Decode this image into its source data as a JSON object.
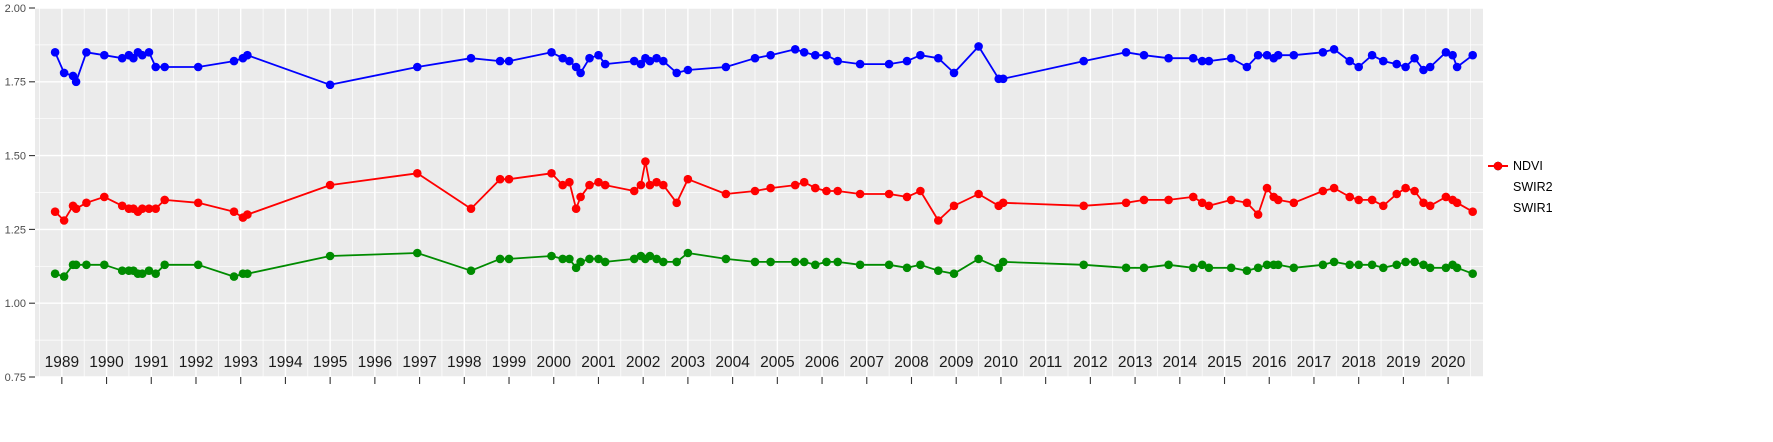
{
  "figure": {
    "background": "#FFFFFF",
    "panel_background": "#EBEBEB",
    "grid_color": "#FFFFFF",
    "y_axis_text_color": "#4D4D4D",
    "x_axis_text_color": "#1A1A1A",
    "tick_color": "#333333"
  },
  "chart_data": {
    "type": "line",
    "title": "",
    "xlabel": "",
    "ylabel": "",
    "grid": true,
    "legend_position": "right",
    "xlim": [
      1988.4,
      2020.78
    ],
    "ylim": [
      0.75,
      2.0
    ],
    "x_ticks": [
      1989,
      1990,
      1991,
      1992,
      1993,
      1994,
      1995,
      1996,
      1997,
      1998,
      1999,
      2000,
      2001,
      2002,
      2003,
      2004,
      2005,
      2006,
      2007,
      2008,
      2009,
      2010,
      2011,
      2012,
      2013,
      2014,
      2015,
      2016,
      2017,
      2018,
      2019,
      2020
    ],
    "x_tick_labels": [
      "1989",
      "1990",
      "1991",
      "1992",
      "1993",
      "1994",
      "1995",
      "1996",
      "1997",
      "1998",
      "1999",
      "2000",
      "2001",
      "2002",
      "2003",
      "2004",
      "2005",
      "2006",
      "2007",
      "2008",
      "2009",
      "2010",
      "2011",
      "2012",
      "2013",
      "2014",
      "2015",
      "2016",
      "2017",
      "2018",
      "2019",
      "2020"
    ],
    "y_ticks": [
      0.75,
      1.0,
      1.25,
      1.5,
      1.75,
      2.0
    ],
    "y_tick_labels": [
      "0.75",
      "1.00",
      "1.25",
      "1.50",
      "1.75",
      "2.00"
    ],
    "y_minor_ticks": [
      0.875,
      1.125,
      1.375,
      1.625,
      1.875
    ],
    "x": [
      1988.85,
      1989.05,
      1989.25,
      1989.32,
      1989.55,
      1989.95,
      1990.35,
      1990.5,
      1990.6,
      1990.7,
      1990.8,
      1990.95,
      1991.1,
      1991.3,
      1992.05,
      1992.85,
      1993.05,
      1993.15,
      1995.0,
      1996.95,
      1998.15,
      1998.8,
      1999.0,
      1999.95,
      2000.2,
      2000.35,
      2000.5,
      2000.6,
      2000.8,
      2001.0,
      2001.15,
      2001.8,
      2001.95,
      2002.05,
      2002.15,
      2002.3,
      2002.45,
      2002.75,
      2003.0,
      2003.85,
      2004.5,
      2004.85,
      2005.4,
      2005.6,
      2005.85,
      2006.1,
      2006.35,
      2006.85,
      2007.5,
      2007.9,
      2008.2,
      2008.6,
      2008.95,
      2009.5,
      2009.95,
      2010.05,
      2011.85,
      2012.8,
      2013.2,
      2013.75,
      2014.3,
      2014.5,
      2014.65,
      2015.15,
      2015.5,
      2015.75,
      2015.95,
      2016.1,
      2016.2,
      2016.55,
      2017.2,
      2017.45,
      2017.8,
      2018.0,
      2018.3,
      2018.55,
      2018.85,
      2019.05,
      2019.25,
      2019.45,
      2019.6,
      2019.95,
      2020.1,
      2020.2,
      2020.55
    ],
    "series": [
      {
        "name": "NDVI",
        "color": "#0000FF",
        "values": [
          1.85,
          1.78,
          1.77,
          1.75,
          1.85,
          1.84,
          1.83,
          1.84,
          1.83,
          1.85,
          1.84,
          1.85,
          1.8,
          1.8,
          1.8,
          1.82,
          1.83,
          1.84,
          1.74,
          1.8,
          1.83,
          1.82,
          1.82,
          1.85,
          1.83,
          1.82,
          1.8,
          1.78,
          1.83,
          1.84,
          1.81,
          1.82,
          1.81,
          1.83,
          1.82,
          1.83,
          1.82,
          1.78,
          1.79,
          1.8,
          1.83,
          1.84,
          1.86,
          1.85,
          1.84,
          1.84,
          1.82,
          1.81,
          1.81,
          1.82,
          1.84,
          1.83,
          1.78,
          1.87,
          1.76,
          1.76,
          1.82,
          1.85,
          1.84,
          1.83,
          1.83,
          1.82,
          1.82,
          1.83,
          1.8,
          1.84,
          1.84,
          1.83,
          1.84,
          1.84,
          1.85,
          1.86,
          1.82,
          1.8,
          1.84,
          1.82,
          1.81,
          1.8,
          1.83,
          1.79,
          1.8,
          1.85,
          1.84,
          1.8,
          1.84
        ]
      },
      {
        "name": "SWIR2",
        "color": "#008B00",
        "values": [
          1.1,
          1.09,
          1.13,
          1.13,
          1.13,
          1.13,
          1.11,
          1.11,
          1.11,
          1.1,
          1.1,
          1.11,
          1.1,
          1.13,
          1.13,
          1.09,
          1.1,
          1.1,
          1.16,
          1.17,
          1.11,
          1.15,
          1.15,
          1.16,
          1.15,
          1.15,
          1.12,
          1.14,
          1.15,
          1.15,
          1.14,
          1.15,
          1.16,
          1.15,
          1.16,
          1.15,
          1.14,
          1.14,
          1.17,
          1.15,
          1.14,
          1.14,
          1.14,
          1.14,
          1.13,
          1.14,
          1.14,
          1.13,
          1.13,
          1.12,
          1.13,
          1.11,
          1.1,
          1.15,
          1.12,
          1.14,
          1.13,
          1.12,
          1.12,
          1.13,
          1.12,
          1.13,
          1.12,
          1.12,
          1.11,
          1.12,
          1.13,
          1.13,
          1.13,
          1.12,
          1.13,
          1.14,
          1.13,
          1.13,
          1.13,
          1.12,
          1.13,
          1.14,
          1.14,
          1.13,
          1.12,
          1.12,
          1.13,
          1.12,
          1.1
        ]
      },
      {
        "name": "SWIR1",
        "color": "#FF0000",
        "values": [
          1.31,
          1.28,
          1.33,
          1.32,
          1.34,
          1.36,
          1.33,
          1.32,
          1.32,
          1.31,
          1.32,
          1.32,
          1.32,
          1.35,
          1.34,
          1.31,
          1.29,
          1.3,
          1.4,
          1.44,
          1.32,
          1.42,
          1.42,
          1.44,
          1.4,
          1.41,
          1.32,
          1.36,
          1.4,
          1.41,
          1.4,
          1.38,
          1.4,
          1.48,
          1.4,
          1.41,
          1.4,
          1.34,
          1.42,
          1.37,
          1.38,
          1.39,
          1.4,
          1.41,
          1.39,
          1.38,
          1.38,
          1.37,
          1.37,
          1.36,
          1.38,
          1.28,
          1.33,
          1.37,
          1.33,
          1.34,
          1.33,
          1.34,
          1.35,
          1.35,
          1.36,
          1.34,
          1.33,
          1.35,
          1.34,
          1.3,
          1.39,
          1.36,
          1.35,
          1.34,
          1.38,
          1.39,
          1.36,
          1.35,
          1.35,
          1.33,
          1.37,
          1.39,
          1.38,
          1.34,
          1.33,
          1.36,
          1.35,
          1.34,
          1.31
        ]
      }
    ],
    "legend": {
      "items": [
        "NDVI",
        "SWIR2",
        "SWIR1"
      ]
    }
  }
}
